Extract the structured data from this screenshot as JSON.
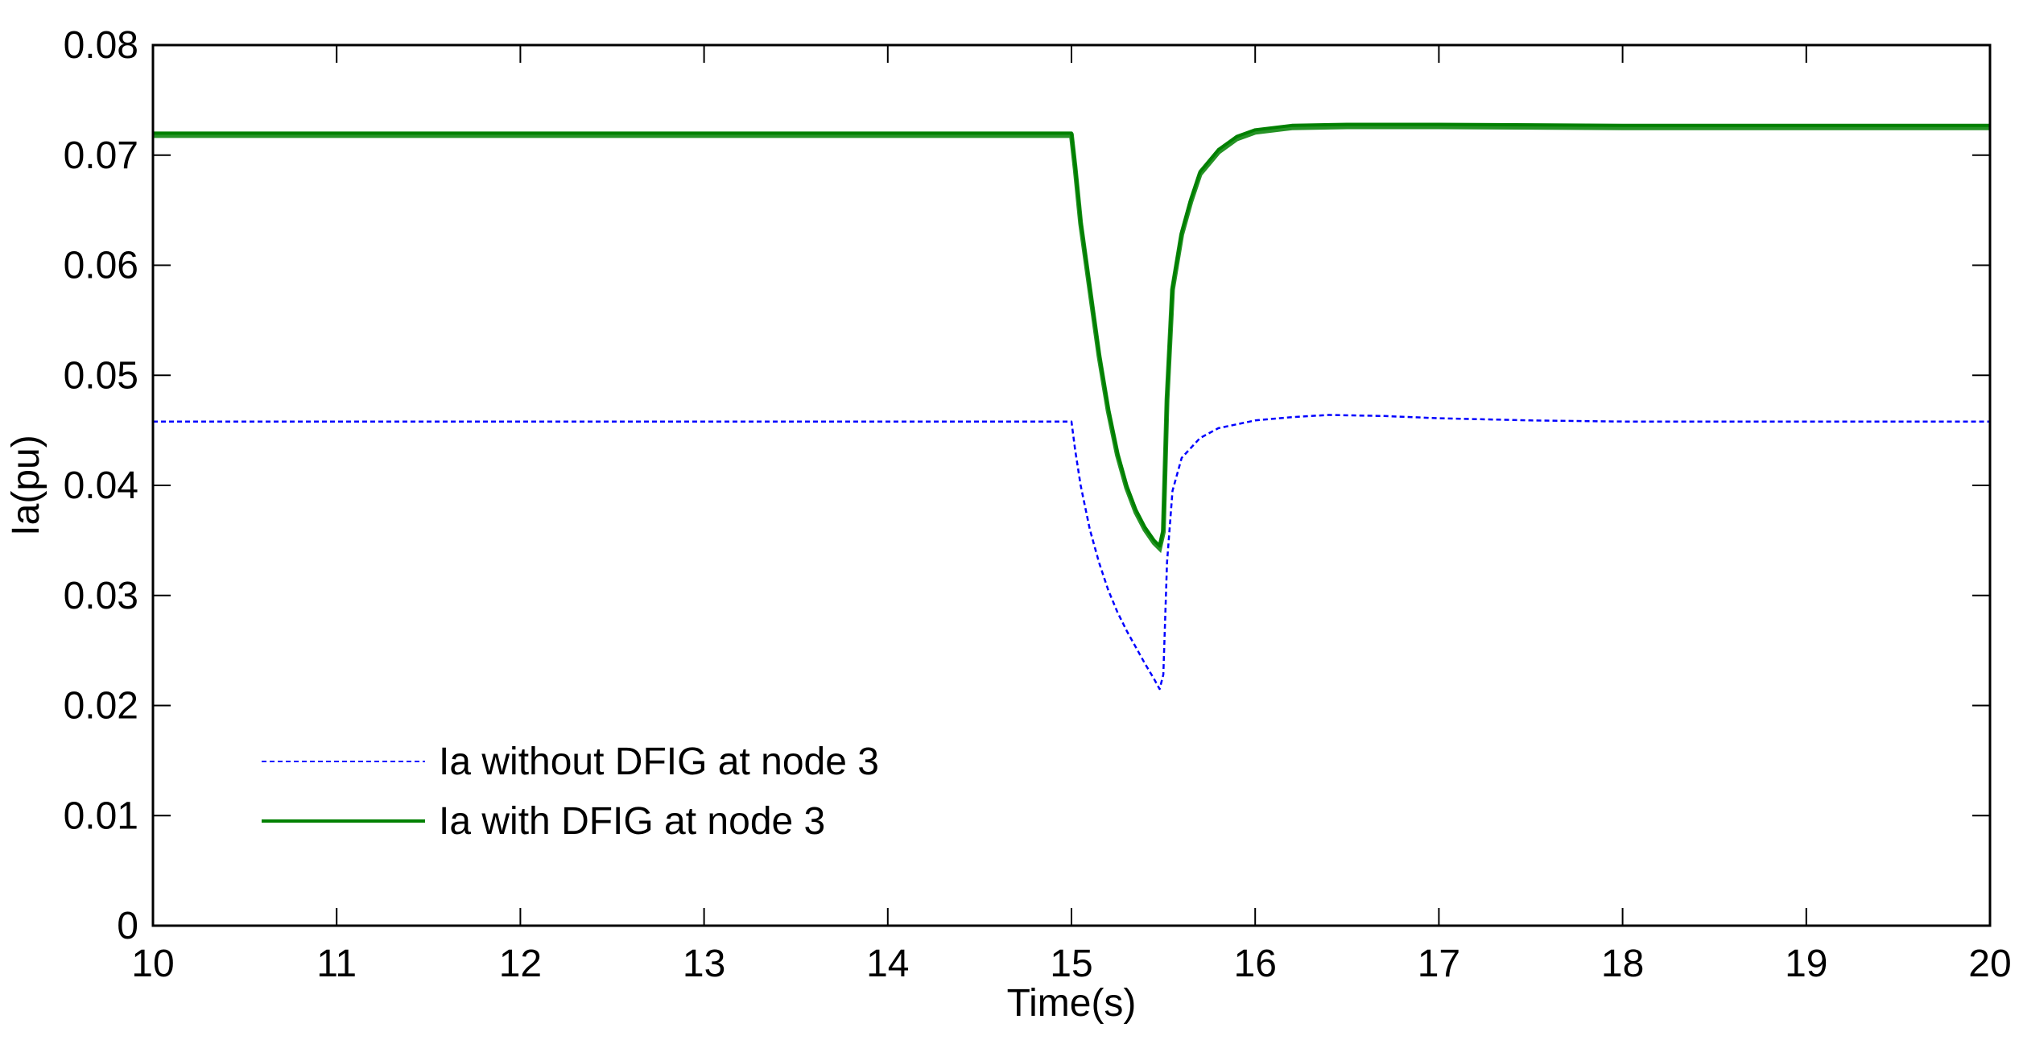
{
  "chart_data": {
    "type": "line",
    "title": "",
    "xlabel": "Time(s)",
    "ylabel": "Ia(pu)",
    "xlim": [
      10,
      20
    ],
    "ylim": [
      0,
      0.08
    ],
    "x_ticks": [
      "10",
      "11",
      "12",
      "13",
      "14",
      "15",
      "16",
      "17",
      "18",
      "19",
      "20"
    ],
    "y_ticks": [
      "0",
      "0.01",
      "0.02",
      "0.03",
      "0.04",
      "0.05",
      "0.06",
      "0.07",
      "0.08"
    ],
    "grid": false,
    "legend_position": "lower-left",
    "series": [
      {
        "name": "Ia without DFIG at node 3",
        "color": "#0000ff",
        "line_style": "dashed",
        "points": [
          [
            10,
            0.0458
          ],
          [
            11,
            0.0458
          ],
          [
            12,
            0.0458
          ],
          [
            13,
            0.0458
          ],
          [
            14,
            0.0458
          ],
          [
            15.0,
            0.0458
          ],
          [
            15.02,
            0.0432
          ],
          [
            15.05,
            0.04
          ],
          [
            15.1,
            0.036
          ],
          [
            15.15,
            0.033
          ],
          [
            15.2,
            0.0305
          ],
          [
            15.25,
            0.0285
          ],
          [
            15.3,
            0.0268
          ],
          [
            15.35,
            0.0253
          ],
          [
            15.4,
            0.0238
          ],
          [
            15.45,
            0.0224
          ],
          [
            15.48,
            0.0215
          ],
          [
            15.5,
            0.0228
          ],
          [
            15.52,
            0.033
          ],
          [
            15.55,
            0.0395
          ],
          [
            15.6,
            0.0425
          ],
          [
            15.7,
            0.0443
          ],
          [
            15.8,
            0.0452
          ],
          [
            16.0,
            0.0459
          ],
          [
            16.2,
            0.0462
          ],
          [
            16.4,
            0.0464
          ],
          [
            16.7,
            0.0463
          ],
          [
            17.0,
            0.0461
          ],
          [
            17.5,
            0.0459
          ],
          [
            18,
            0.0458
          ],
          [
            19,
            0.0458
          ],
          [
            20,
            0.0458
          ]
        ]
      },
      {
        "name": "Ia with DFIG at node 3",
        "color": "#008000",
        "line_style": "solid",
        "points": [
          [
            10,
            0.072
          ],
          [
            11,
            0.072
          ],
          [
            12,
            0.072
          ],
          [
            13,
            0.072
          ],
          [
            14,
            0.072
          ],
          [
            15.0,
            0.072
          ],
          [
            15.02,
            0.069
          ],
          [
            15.05,
            0.064
          ],
          [
            15.1,
            0.058
          ],
          [
            15.15,
            0.052
          ],
          [
            15.2,
            0.047
          ],
          [
            15.25,
            0.043
          ],
          [
            15.3,
            0.04
          ],
          [
            15.35,
            0.0378
          ],
          [
            15.4,
            0.0362
          ],
          [
            15.45,
            0.035
          ],
          [
            15.48,
            0.0345
          ],
          [
            15.5,
            0.036
          ],
          [
            15.52,
            0.048
          ],
          [
            15.55,
            0.058
          ],
          [
            15.6,
            0.063
          ],
          [
            15.65,
            0.066
          ],
          [
            15.7,
            0.0685
          ],
          [
            15.8,
            0.0705
          ],
          [
            15.9,
            0.0717
          ],
          [
            16.0,
            0.0723
          ],
          [
            16.2,
            0.0727
          ],
          [
            16.5,
            0.0728
          ],
          [
            17,
            0.0728
          ],
          [
            18,
            0.0727
          ],
          [
            19,
            0.0727
          ],
          [
            20,
            0.0727
          ]
        ]
      }
    ]
  }
}
